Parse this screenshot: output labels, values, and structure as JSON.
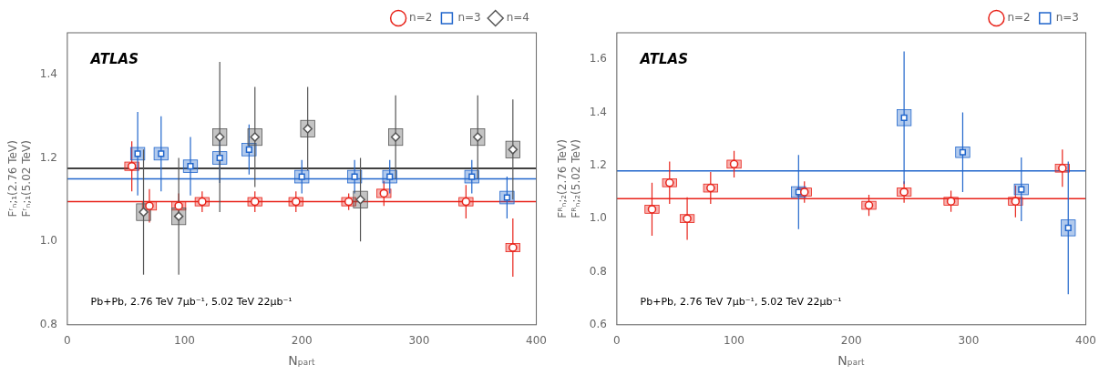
{
  "chart_data": [
    {
      "type": "scatter",
      "xlabel": "Nₚₐᵣₜ",
      "ylabel": "Fʳₙ;₁(2.76 TeV)\nFʳₙ;₁(5.02 TeV)",
      "annotations": [
        "ATLAS",
        "Pb+Pb, 2.76 TeV 7μb⁻¹, 5.02 TeV 22μb⁻¹"
      ],
      "xlim": [
        0,
        400
      ],
      "xticks": [
        0,
        100,
        200,
        300,
        400
      ],
      "ylim": [
        0.8,
        1.5
      ],
      "yticks": [
        0.8,
        {
          "value": 1.0,
          "label": "1.0"
        },
        1.2,
        1.4
      ],
      "grid": false,
      "legend": "upper right",
      "hlines": [
        {
          "y": 1.095,
          "color": "#e8231a"
        },
        {
          "y": 1.15,
          "color": "#2166cc"
        },
        {
          "y": 1.175,
          "color": "#000000"
        }
      ],
      "series": [
        {
          "name": "n=2",
          "color": "#e8231a",
          "marker": "circle",
          "x": [
            55,
            70,
            95,
            115,
            160,
            195,
            240,
            270,
            340,
            380
          ],
          "values": [
            1.18,
            1.085,
            1.085,
            1.095,
            1.095,
            1.095,
            1.095,
            1.115,
            1.095,
            0.985
          ],
          "yerr": [
            0.06,
            0.04,
            0.03,
            0.025,
            0.025,
            0.025,
            0.02,
            0.03,
            0.04,
            0.07
          ],
          "syst": [
            0.01,
            0.01,
            0.01,
            0.01,
            0.01,
            0.01,
            0.01,
            0.01,
            0.01,
            0.01
          ]
        },
        {
          "name": "n=3",
          "color": "#2166cc",
          "marker": "square",
          "x": [
            60,
            80,
            105,
            130,
            155,
            200,
            245,
            275,
            345,
            375
          ],
          "values": [
            1.21,
            1.21,
            1.18,
            1.2,
            1.22,
            1.155,
            1.155,
            1.155,
            1.155,
            1.105
          ],
          "yerr": [
            0.1,
            0.09,
            0.07,
            0.06,
            0.06,
            0.04,
            0.04,
            0.04,
            0.04,
            0.05
          ],
          "syst": [
            0.015,
            0.015,
            0.015,
            0.015,
            0.015,
            0.015,
            0.015,
            0.015,
            0.015,
            0.015
          ]
        },
        {
          "name": "n=4",
          "color": "#555555",
          "marker": "diamond",
          "x": [
            65,
            95,
            130,
            160,
            205,
            250,
            280,
            350,
            380
          ],
          "values": [
            1.07,
            1.06,
            1.25,
            1.25,
            1.27,
            1.1,
            1.25,
            1.25,
            1.22
          ],
          "yerr": [
            0.15,
            0.14,
            0.18,
            0.12,
            0.1,
            0.1,
            0.1,
            0.1,
            0.12
          ],
          "syst": [
            0.02,
            0.02,
            0.02,
            0.02,
            0.02,
            0.02,
            0.02,
            0.02,
            0.02
          ]
        }
      ]
    },
    {
      "type": "scatter",
      "xlabel": "Nₚₐᵣₜ",
      "ylabel": "Fᴿₙ;₂(2.76 TeV)\nFᴿₙ;₂(5.02 TeV)",
      "annotations": [
        "ATLAS",
        "Pb+Pb, 2.76 TeV 7μb⁻¹, 5.02 TeV 22μb⁻¹"
      ],
      "xlim": [
        0,
        400
      ],
      "xticks": [
        0,
        100,
        200,
        300,
        400
      ],
      "ylim": [
        0.6,
        1.7
      ],
      "yticks": [
        0.6,
        0.8,
        {
          "value": 1.0,
          "label": "1.0"
        },
        1.2,
        1.4,
        1.6
      ],
      "grid": false,
      "legend": "upper right",
      "hlines": [
        {
          "y": 1.075,
          "color": "#e8231a"
        },
        {
          "y": 1.18,
          "color": "#2166cc"
        }
      ],
      "series": [
        {
          "name": "n=2",
          "color": "#e8231a",
          "marker": "circle",
          "x": [
            30,
            45,
            60,
            80,
            100,
            160,
            215,
            245,
            285,
            340,
            380
          ],
          "values": [
            1.035,
            1.135,
            1.0,
            1.115,
            1.205,
            1.1,
            1.05,
            1.1,
            1.065,
            1.065,
            1.19
          ],
          "yerr": [
            0.1,
            0.08,
            0.08,
            0.06,
            0.05,
            0.04,
            0.04,
            0.04,
            0.04,
            0.06,
            0.07
          ],
          "syst": [
            0.015,
            0.015,
            0.015,
            0.015,
            0.015,
            0.015,
            0.015,
            0.015,
            0.015,
            0.015,
            0.015
          ]
        },
        {
          "name": "n=3",
          "color": "#2166cc",
          "marker": "square",
          "x": [
            155,
            245,
            295,
            345,
            385
          ],
          "values": [
            1.1,
            1.38,
            1.25,
            1.11,
            0.965
          ],
          "yerr": [
            0.14,
            0.25,
            0.15,
            0.12,
            0.25
          ],
          "syst": [
            0.02,
            0.03,
            0.02,
            0.02,
            0.03
          ]
        }
      ]
    }
  ]
}
